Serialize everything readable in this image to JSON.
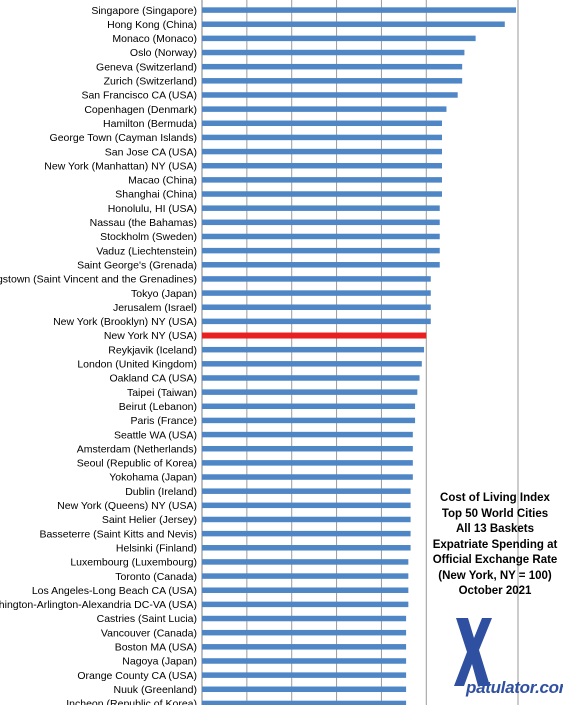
{
  "chart_data": {
    "type": "bar",
    "orientation": "horizontal",
    "categories": [
      "Singapore (Singapore)",
      "Hong Kong (China)",
      "Monaco (Monaco)",
      "Oslo (Norway)",
      "Geneva (Switzerland)",
      "Zurich (Switzerland)",
      "San Francisco CA (USA)",
      "Copenhagen (Denmark)",
      "Hamilton (Bermuda)",
      "George Town (Cayman Islands)",
      "San Jose CA (USA)",
      "New York (Manhattan) NY (USA)",
      "Macao (China)",
      "Shanghai (China)",
      "Honolulu, HI (USA)",
      "Nassau (the Bahamas)",
      "Stockholm (Sweden)",
      "Vaduz (Liechtenstein)",
      "Saint George's (Grenada)",
      "Kingstown (Saint Vincent and the Grenadines)",
      "Tokyo (Japan)",
      "Jerusalem (Israel)",
      "New York (Brooklyn) NY (USA)",
      "New York NY (USA)",
      "Reykjavik (Iceland)",
      "London (United Kingdom)",
      "Oakland CA (USA)",
      "Taipei (Taiwan)",
      "Beirut (Lebanon)",
      "Paris (France)",
      "Seattle WA (USA)",
      "Amsterdam (Netherlands)",
      "Seoul (Republic of Korea)",
      "Yokohama (Japan)",
      "Dublin (Ireland)",
      "New York (Queens) NY (USA)",
      "Saint Helier (Jersey)",
      "Basseterre (Saint Kitts and Nevis)",
      "Helsinki (Finland)",
      "Luxembourg (Luxembourg)",
      "Toronto (Canada)",
      "Los Angeles-Long Beach CA (USA)",
      "Washington-Arlington-Alexandria DC-VA (USA)",
      "Castries (Saint Lucia)",
      "Vancouver (Canada)",
      "Boston MA (USA)",
      "Nagoya (Japan)",
      "Orange County CA (USA)",
      "Nuuk (Greenland)",
      "Incheon (Republic of Korea)"
    ],
    "values": [
      140,
      135,
      122,
      117,
      116,
      116,
      114,
      109,
      107,
      107,
      107,
      107,
      107,
      107,
      106,
      106,
      106,
      106,
      106,
      102,
      102,
      102,
      102,
      100,
      99,
      98,
      97,
      96,
      95,
      95,
      94,
      94,
      94,
      94,
      93,
      93,
      93,
      93,
      93,
      92,
      92,
      92,
      92,
      91,
      91,
      91,
      91,
      91,
      91,
      91
    ],
    "highlight_category": "New York NY (USA)",
    "colors": {
      "bar": "#4f86c6",
      "highlight": "#e8201f",
      "grid": "#9a9a9a"
    },
    "grid": true,
    "annotation_lines": [
      "Cost of Living Index",
      "Top 50 World Cities",
      "All 13 Baskets",
      "Expatriate Spending  at",
      "Official Exchange Rate",
      "(New York, NY = 100)",
      "October 2021"
    ]
  },
  "logo": {
    "text": "patulator.com",
    "mark": "X",
    "color": "#2f4fa0"
  }
}
